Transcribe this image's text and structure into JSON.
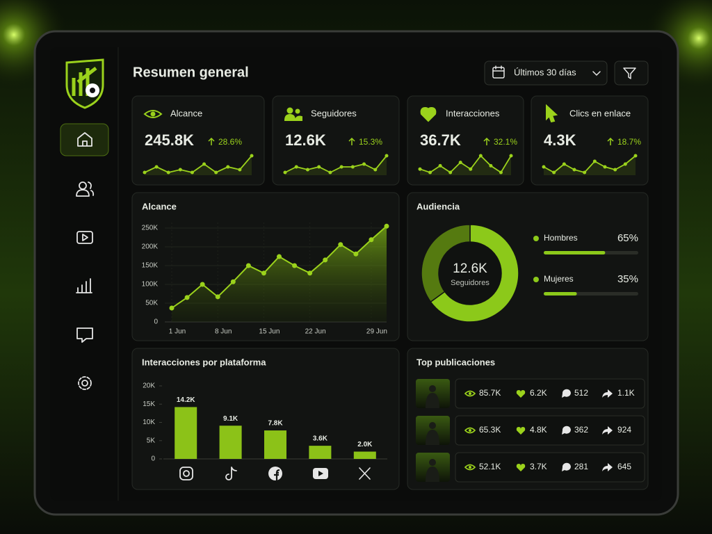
{
  "header": {
    "title": "Resumen general",
    "date_range": "Últimos 30 días"
  },
  "kpis": [
    {
      "label": "Alcance",
      "value": "245.8K",
      "change": "28.6%",
      "trend": [
        3,
        5,
        3,
        4,
        3,
        6,
        3,
        5,
        4,
        9
      ]
    },
    {
      "label": "Seguidores",
      "value": "12.6K",
      "change": "15.3%",
      "trend": [
        3,
        5,
        4,
        5,
        3,
        5,
        5,
        6,
        4,
        9
      ]
    },
    {
      "label": "Interacciones",
      "value": "36.7K",
      "change": "32.1%",
      "trend": [
        4,
        3,
        5,
        3,
        6,
        4,
        8,
        5,
        3,
        8
      ]
    },
    {
      "label": "Clics en enlace",
      "value": "4.3K",
      "change": "18.7%",
      "trend": [
        5,
        3,
        6,
        4,
        3,
        7,
        5,
        4,
        6,
        9
      ]
    }
  ],
  "chart_data": [
    {
      "type": "line",
      "title": "Alcance",
      "categories": [
        "1 Jun",
        null,
        null,
        "8 Jun",
        null,
        null,
        "15 Jun",
        null,
        null,
        "22 Jun",
        null,
        null,
        null,
        "29 Jun",
        null
      ],
      "values": [
        37000,
        65000,
        100000,
        67000,
        107000,
        150000,
        130000,
        174000,
        150000,
        130000,
        165000,
        206000,
        181000,
        219000,
        255000
      ],
      "color": "#9bd21c",
      "ylim": [
        0,
        262000
      ],
      "yticks": [
        0,
        {
          "value": 50000,
          "label": "50K"
        },
        {
          "value": 100000,
          "label": "100K"
        },
        {
          "value": 150000,
          "label": "150K"
        },
        {
          "value": 200000,
          "label": "200K"
        },
        {
          "value": 250000,
          "label": "250K"
        }
      ],
      "grid": true
    },
    {
      "type": "donut",
      "title": "Audiencia",
      "center_value": "12.6K",
      "center_label": "Seguidores",
      "categories": [
        "Hombres",
        "Mujeres"
      ],
      "values": [
        65,
        35
      ],
      "value_labels": [
        "65%",
        "35%"
      ],
      "colors": [
        "#8cc91a",
        "#557a10"
      ]
    },
    {
      "type": "bar",
      "title": "Interacciones por plataforma",
      "categories": [
        null,
        null,
        null,
        null,
        null
      ],
      "values": [
        14200,
        9100,
        7800,
        3600,
        2000
      ],
      "value_labels": [
        "14.2K",
        "9.1K",
        "7.8K",
        "3.6K",
        "2.0K"
      ],
      "color": "#8cc218",
      "ylim": [
        0,
        20000
      ],
      "yticks": [
        0,
        {
          "value": 5000,
          "label": "5K"
        },
        {
          "value": 10000,
          "label": "10K"
        },
        {
          "value": 15000,
          "label": "15K"
        },
        {
          "value": 20000,
          "label": "20K"
        }
      ]
    }
  ],
  "top_posts": {
    "title": "Top publicaciones",
    "rows": [
      {
        "views": "85.7K",
        "likes": "6.2K",
        "comments": "512",
        "shares": "1.1K"
      },
      {
        "views": "65.3K",
        "likes": "4.8K",
        "comments": "362",
        "shares": "924"
      },
      {
        "views": "52.1K",
        "likes": "3.7K",
        "comments": "281",
        "shares": "645"
      }
    ]
  }
}
